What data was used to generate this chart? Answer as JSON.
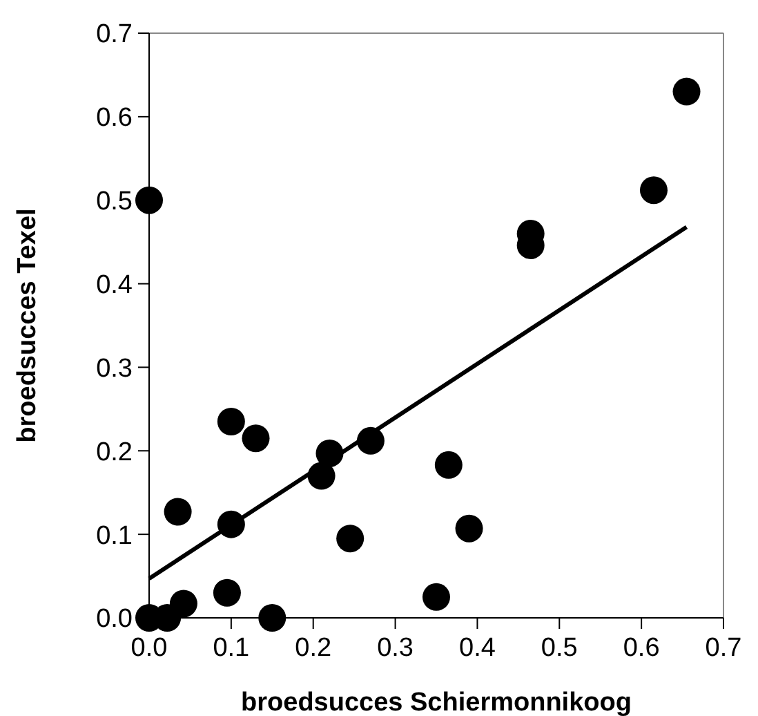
{
  "chart_data": {
    "type": "scatter",
    "xlabel": "broedsucces Schiermonnikoog",
    "ylabel": "broedsucces Texel",
    "xlim": [
      0,
      0.7
    ],
    "ylim": [
      0,
      0.7
    ],
    "xticks": [
      {
        "value": 0,
        "label": "0.0"
      },
      0.1,
      0.2,
      0.3,
      0.4,
      0.5,
      0.6,
      0.7
    ],
    "yticks": [
      {
        "value": 0,
        "label": "0.0"
      },
      0.1,
      0.2,
      0.3,
      0.4,
      0.5,
      0.6,
      0.7
    ],
    "grid": false,
    "marker": "circle",
    "series": [
      {
        "color": "#000000",
        "x": [
          0,
          0,
          0.022,
          0.042,
          0.035,
          0.095,
          0.1,
          0.1,
          0.13,
          0.15,
          0.21,
          0.22,
          0.245,
          0.27,
          0.35,
          0.365,
          0.39,
          0.465,
          0.465,
          0.615,
          0.655
        ],
        "values": [
          0.5,
          0,
          0,
          0.017,
          0.127,
          0.03,
          0.112,
          0.235,
          0.215,
          0,
          0.17,
          0.197,
          0.095,
          0.212,
          0.025,
          0.183,
          0.107,
          0.46,
          0.446,
          0.512,
          0.63
        ]
      },
      {
        "type": "line",
        "color": "#000000",
        "line_style": "solid",
        "marker": "none",
        "x": [
          0,
          0.655
        ],
        "values": [
          0.047,
          0.468
        ]
      }
    ]
  }
}
